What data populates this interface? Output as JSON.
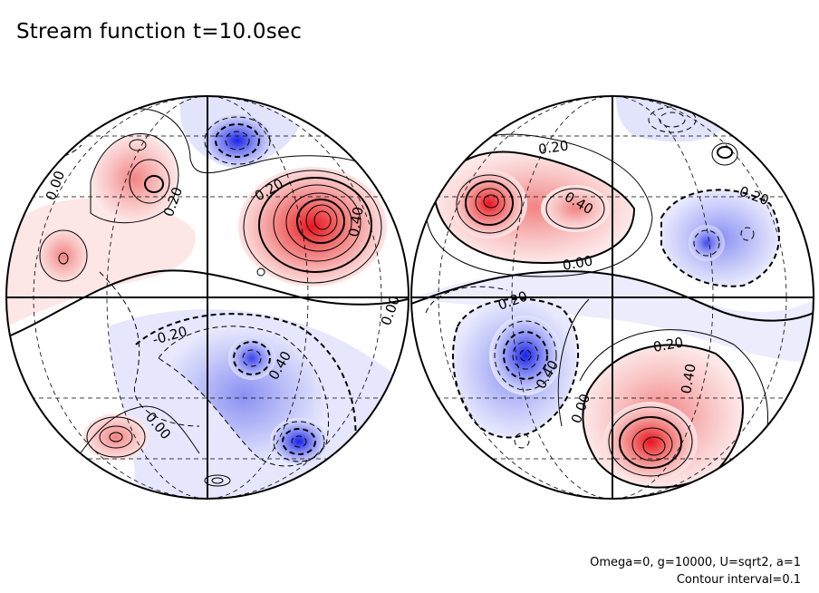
{
  "title": "Stream function t=10.0sec",
  "footer": {
    "params": "Omega=0, g=10000, U=sqrt2, a=1",
    "contour_interval": "Contour interval=0.1"
  },
  "colors": {
    "positive": "#e8202a",
    "negative": "#1e28e8",
    "line": "#000000"
  },
  "left_hemisphere": {
    "labels": [
      "0.00",
      "0.20",
      "0.20",
      "0.40",
      "0.00",
      "-0.20",
      "0.40",
      "0.00"
    ]
  },
  "right_hemisphere": {
    "labels": [
      "0.20",
      "0.40",
      "0.20",
      "0.00",
      "0.20",
      "0.40",
      "0.00",
      "0.20",
      "0.40"
    ]
  }
}
